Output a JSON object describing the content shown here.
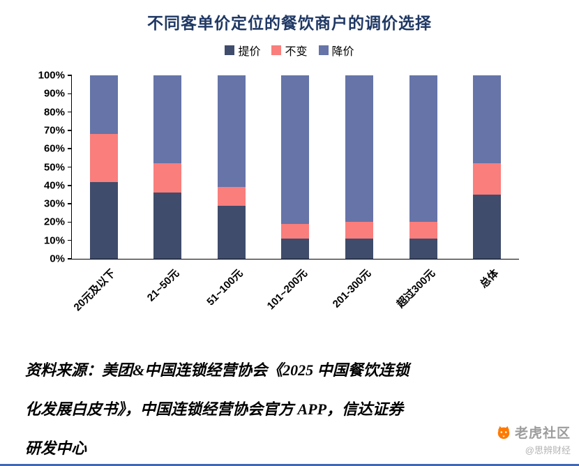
{
  "title": "不同客单价定位的餐饮商户的调价选择",
  "chart_data": {
    "type": "bar",
    "subtype": "stacked-100-percent",
    "title": "不同客单价定位的餐饮商户的调价选择",
    "categories": [
      "20元及以下",
      "21~50元",
      "51~100元",
      "101~200元",
      "201-300元",
      "超过300元",
      "总体"
    ],
    "series": [
      {
        "name": "提价",
        "color": "#3F4C6B",
        "values": [
          42,
          36,
          29,
          11,
          11,
          11,
          35
        ]
      },
      {
        "name": "不变",
        "color": "#F97E7C",
        "values": [
          26,
          16,
          10,
          8,
          9,
          9,
          17
        ]
      },
      {
        "name": "降价",
        "color": "#6674A8",
        "values": [
          32,
          48,
          61,
          81,
          80,
          80,
          48
        ]
      }
    ],
    "xlabel": "",
    "ylabel": "",
    "ylim": [
      0,
      100
    ],
    "y_tick_labels": [
      "0%",
      "10%",
      "20%",
      "30%",
      "40%",
      "50%",
      "60%",
      "70%",
      "80%",
      "90%",
      "100%"
    ],
    "legend_position": "top",
    "grid": false
  },
  "source": {
    "lines": [
      "资料来源：美团&中国连锁经营协会《2025 中国餐饮连锁",
      "化发展白皮书》，中国连锁经营协会官方 APP，信达证券",
      "研发中心"
    ]
  },
  "watermark": {
    "brand": "老虎社区",
    "handle": "@思辨财经",
    "brand_color": "#FF7A00"
  },
  "colors": {
    "axis": "#000000",
    "title": "#1F3864",
    "divider": "#4169B2"
  }
}
